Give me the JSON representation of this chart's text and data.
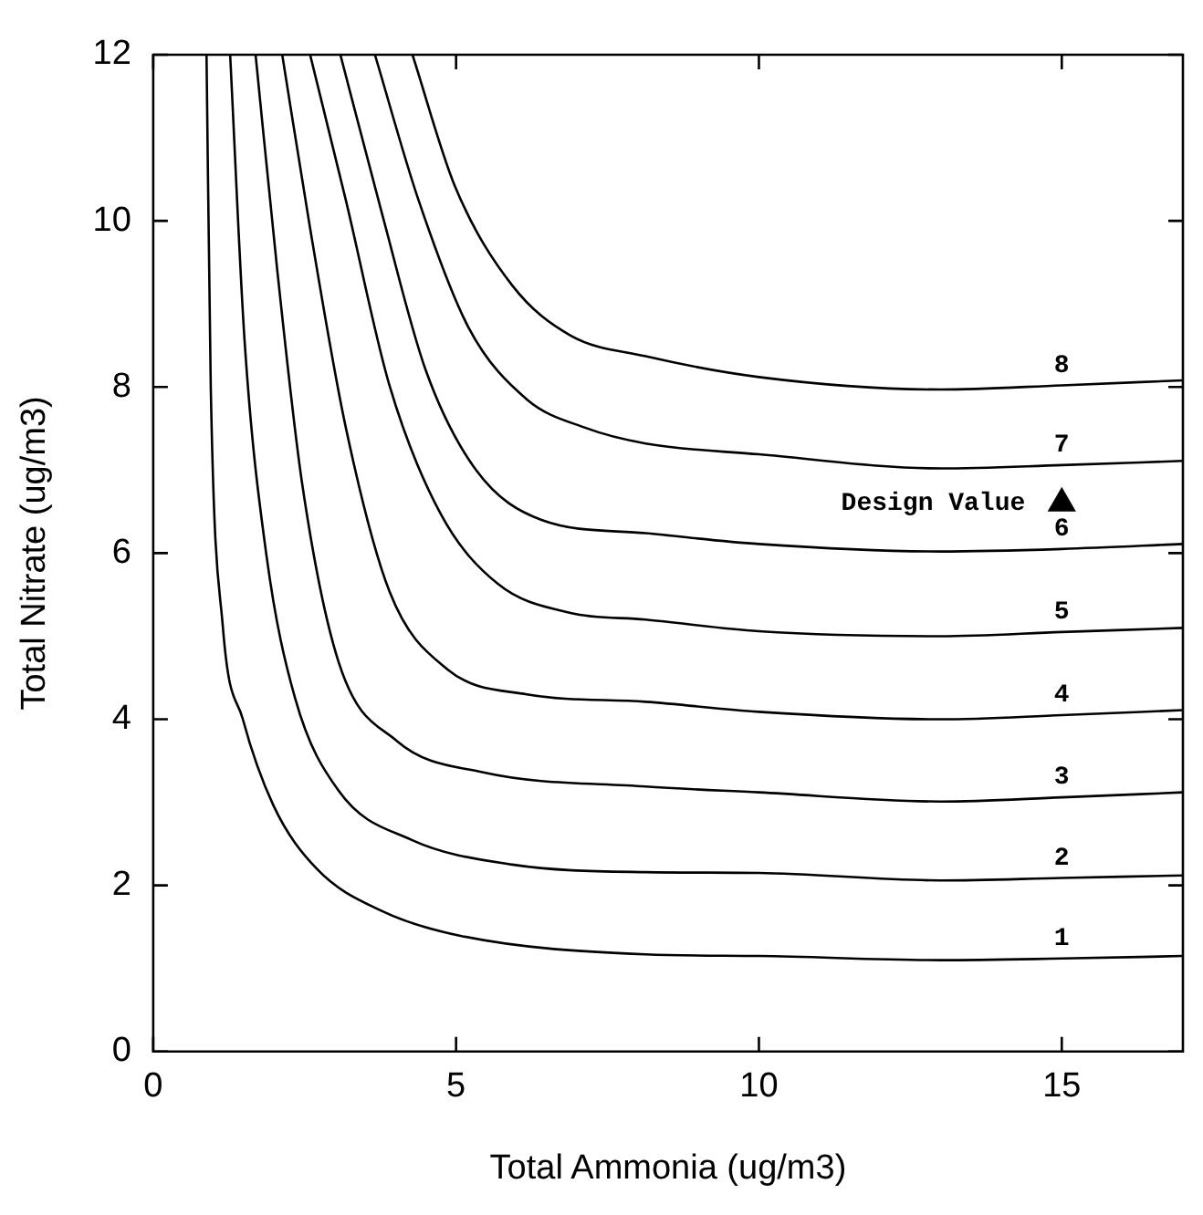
{
  "chart_data": {
    "type": "line",
    "xlabel": "Total Ammonia (ug/m3)",
    "ylabel": "Total Nitrate (ug/m3)",
    "xlim": [
      0,
      17
    ],
    "ylim": [
      0,
      12
    ],
    "xticks": [
      0,
      5,
      10,
      15
    ],
    "yticks": [
      0,
      2,
      4,
      6,
      8,
      10,
      12
    ],
    "grid": false,
    "legend": false,
    "marker": "none",
    "line_style": "solid",
    "series": [
      {
        "name": "1",
        "color": "#000000",
        "x": [
          0.88,
          0.95,
          1.15,
          1.48,
          1.98,
          2.7,
          3.78,
          5.09,
          8.13,
          10,
          13,
          15,
          17
        ],
        "values": [
          12,
          8,
          5.11,
          4,
          2.97,
          2.2,
          1.69,
          1.39,
          1.17,
          1.15,
          1.1,
          1.12,
          1.15
        ]
      },
      {
        "name": "2",
        "color": "#000000",
        "x": [
          1.27,
          1.51,
          1.87,
          2.34,
          3.06,
          4.26,
          5.93,
          8.13,
          10,
          13,
          15,
          17
        ],
        "values": [
          12,
          8.54,
          5.97,
          4.26,
          3.14,
          2.55,
          2.25,
          2.16,
          2.15,
          2.06,
          2.09,
          2.12
        ]
      },
      {
        "name": "3",
        "color": "#000000",
        "x": [
          1.69,
          2.05,
          2.46,
          3.06,
          4.02,
          5.45,
          8.13,
          10,
          13,
          15,
          17
        ],
        "values": [
          12,
          9.39,
          6.83,
          4.69,
          3.74,
          3.36,
          3.19,
          3.12,
          3.01,
          3.06,
          3.12
        ]
      },
      {
        "name": "4",
        "color": "#000000",
        "x": [
          2.13,
          2.59,
          3.18,
          3.9,
          4.86,
          6.17,
          8.13,
          10,
          13,
          15,
          17
        ],
        "values": [
          12,
          9.91,
          7.51,
          5.54,
          4.6,
          4.3,
          4.21,
          4.09,
          4,
          4.05,
          4.11
        ]
      },
      {
        "name": "5",
        "color": "#000000",
        "x": [
          2.59,
          3.18,
          3.9,
          4.74,
          5.69,
          6.89,
          8.13,
          10,
          13,
          15,
          17
        ],
        "values": [
          12,
          10.25,
          8.02,
          6.48,
          5.63,
          5.28,
          5.2,
          5.06,
          5,
          5.05,
          5.1
        ]
      },
      {
        "name": "6",
        "color": "#000000",
        "x": [
          3.09,
          3.78,
          4.5,
          5.33,
          6.41,
          8.13,
          10,
          13,
          15,
          17
        ],
        "values": [
          12,
          10.08,
          8.2,
          7,
          6.4,
          6.24,
          6.11,
          6.02,
          6.05,
          6.11
        ]
      },
      {
        "name": "7",
        "color": "#000000",
        "x": [
          3.66,
          4.38,
          5.21,
          6.17,
          7.13,
          8.13,
          10,
          13,
          15,
          17
        ],
        "values": [
          12,
          10.25,
          8.71,
          7.85,
          7.51,
          7.32,
          7.19,
          7.02,
          7.06,
          7.11
        ]
      },
      {
        "name": "8",
        "color": "#000000",
        "x": [
          4.28,
          4.98,
          5.93,
          6.89,
          8.13,
          10,
          13,
          15,
          17
        ],
        "values": [
          12,
          10.42,
          9.22,
          8.62,
          8.37,
          8.12,
          7.97,
          8.02,
          8.08
        ]
      },
      {
        "type": "scatter",
        "name": "Design Value",
        "color": "#000000",
        "marker": "triangle",
        "x": [
          15
        ],
        "values": [
          6.6
        ]
      }
    ]
  }
}
